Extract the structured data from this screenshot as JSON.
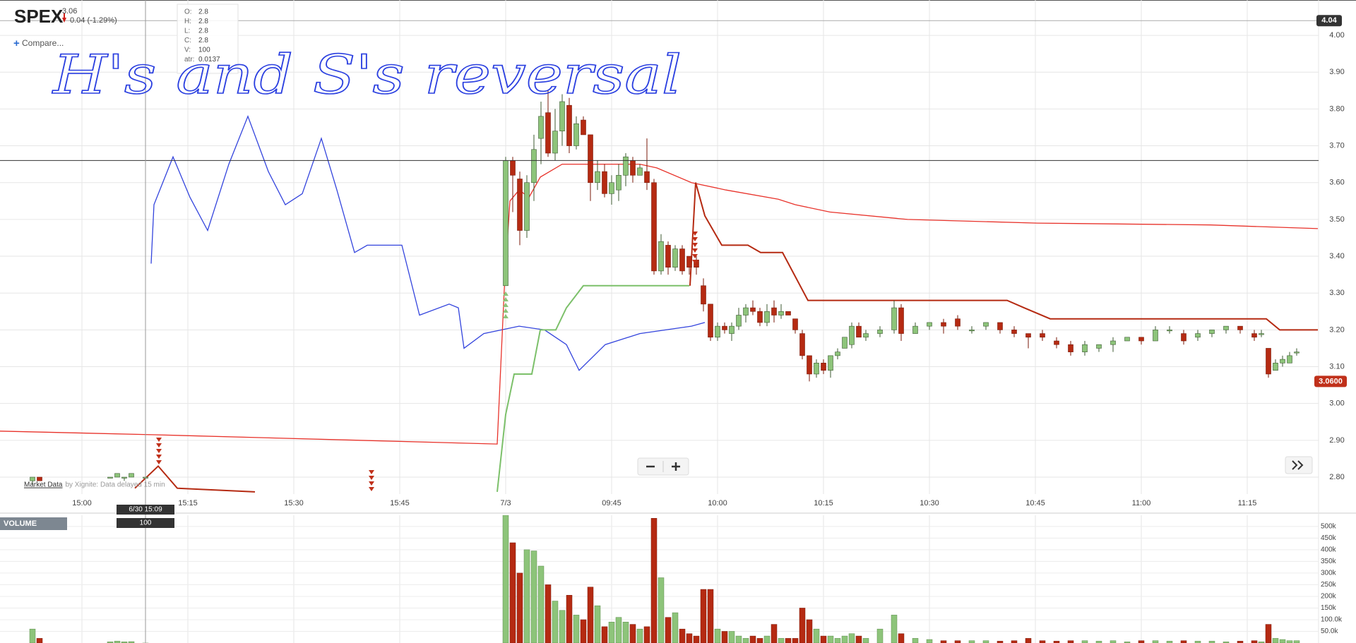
{
  "header": {
    "symbol": "SPEX",
    "price": 3.06,
    "change": "0.04 (-1.29%)",
    "compare": "Compare...",
    "tooltip": [
      {
        "label": "O:",
        "value": 2.8
      },
      {
        "label": "H:",
        "value": 2.8
      },
      {
        "label": "L:",
        "value": 2.8
      },
      {
        "label": "C:",
        "value": 2.8
      },
      {
        "label": "V:",
        "value": 100
      },
      {
        "label": "atr:",
        "value": 0.0137
      }
    ],
    "annotation": "H's and S's reversal"
  },
  "chart_data": {
    "type": "candlestick",
    "x": [
      -7,
      -6,
      4,
      5,
      6,
      7,
      9,
      60,
      61,
      62,
      63,
      64,
      65,
      66,
      67,
      68,
      69,
      70,
      71,
      72,
      73,
      74,
      75,
      76,
      77,
      78,
      79,
      80,
      81,
      82,
      83,
      84,
      85,
      86,
      87,
      88,
      89,
      90,
      91,
      92,
      93,
      94,
      95,
      96,
      97,
      98,
      99,
      100,
      101,
      102,
      103,
      104,
      105,
      106,
      107,
      108,
      109,
      110,
      111,
      113,
      115,
      116,
      118,
      120,
      122,
      124,
      126,
      128,
      130,
      132,
      134,
      136,
      138,
      140,
      142,
      144,
      146,
      148,
      150,
      152,
      154,
      156,
      158,
      160,
      162,
      164,
      166,
      167,
      168,
      169,
      170,
      171,
      172
    ],
    "open": [
      2.79,
      2.8,
      2.8,
      2.8,
      2.8,
      2.8,
      2.8,
      3.32,
      3.66,
      3.61,
      3.47,
      3.6,
      3.72,
      3.79,
      3.68,
      3.74,
      3.81,
      3.7,
      3.77,
      3.73,
      3.6,
      3.63,
      3.57,
      3.58,
      3.62,
      3.66,
      3.62,
      3.63,
      3.6,
      3.36,
      3.43,
      3.37,
      3.42,
      3.4,
      3.39,
      3.32,
      3.27,
      3.18,
      3.21,
      3.19,
      3.21,
      3.24,
      3.26,
      3.25,
      3.22,
      3.26,
      3.24,
      3.25,
      3.23,
      3.19,
      3.13,
      3.08,
      3.11,
      3.09,
      3.13,
      3.15,
      3.16,
      3.21,
      3.18,
      3.19,
      3.2,
      3.26,
      3.19,
      3.21,
      3.22,
      3.23,
      3.2,
      3.21,
      3.22,
      3.2,
      3.19,
      3.19,
      3.17,
      3.16,
      3.14,
      3.15,
      3.16,
      3.17,
      3.18,
      3.17,
      3.2,
      3.19,
      3.18,
      3.19,
      3.2,
      3.21,
      3.19,
      3.19,
      3.15,
      3.09,
      3.11,
      3.11,
      3.14
    ],
    "high": [
      2.8,
      2.8,
      2.8,
      2.81,
      2.8,
      2.81,
      2.8,
      3.67,
      3.67,
      3.63,
      3.62,
      3.73,
      3.82,
      3.85,
      3.8,
      3.84,
      3.83,
      3.78,
      3.78,
      3.73,
      3.66,
      3.65,
      3.62,
      3.65,
      3.68,
      3.67,
      3.65,
      3.72,
      3.61,
      3.46,
      3.44,
      3.43,
      3.43,
      3.4,
      3.4,
      3.34,
      3.27,
      3.22,
      3.22,
      3.22,
      3.26,
      3.27,
      3.28,
      3.26,
      3.27,
      3.28,
      3.27,
      3.25,
      3.23,
      3.2,
      3.13,
      3.12,
      3.12,
      3.13,
      3.15,
      3.18,
      3.22,
      3.22,
      3.2,
      3.21,
      3.28,
      3.27,
      3.22,
      3.22,
      3.23,
      3.24,
      3.21,
      3.22,
      3.22,
      3.21,
      3.19,
      3.2,
      3.18,
      3.17,
      3.17,
      3.16,
      3.18,
      3.18,
      3.18,
      3.21,
      3.21,
      3.2,
      3.2,
      3.2,
      3.21,
      3.21,
      3.2,
      3.2,
      3.15,
      3.12,
      3.13,
      3.14,
      3.15
    ],
    "low": [
      2.78,
      2.79,
      2.8,
      2.8,
      2.79,
      2.8,
      2.8,
      3.32,
      3.52,
      3.43,
      3.45,
      3.55,
      3.65,
      3.67,
      3.66,
      3.7,
      3.68,
      3.69,
      3.73,
      3.55,
      3.58,
      3.56,
      3.54,
      3.55,
      3.59,
      3.6,
      3.62,
      3.58,
      3.35,
      3.35,
      3.35,
      3.36,
      3.35,
      3.35,
      3.35,
      3.25,
      3.17,
      3.17,
      3.19,
      3.17,
      3.2,
      3.22,
      3.24,
      3.21,
      3.21,
      3.22,
      3.23,
      3.24,
      3.19,
      3.12,
      3.06,
      3.07,
      3.08,
      3.07,
      3.12,
      3.15,
      3.15,
      3.18,
      3.17,
      3.18,
      3.19,
      3.17,
      3.19,
      3.2,
      3.19,
      3.2,
      3.19,
      3.2,
      3.19,
      3.18,
      3.15,
      3.17,
      3.15,
      3.13,
      3.13,
      3.14,
      3.14,
      3.17,
      3.16,
      3.17,
      3.19,
      3.16,
      3.17,
      3.18,
      3.19,
      3.19,
      3.17,
      3.18,
      3.07,
      3.09,
      3.1,
      3.11,
      3.13
    ],
    "close": [
      2.8,
      2.79,
      2.8,
      2.81,
      2.8,
      2.81,
      2.8,
      3.66,
      3.62,
      3.47,
      3.6,
      3.69,
      3.78,
      3.68,
      3.74,
      3.82,
      3.7,
      3.76,
      3.73,
      3.6,
      3.63,
      3.57,
      3.6,
      3.62,
      3.67,
      3.62,
      3.64,
      3.6,
      3.36,
      3.44,
      3.37,
      3.42,
      3.36,
      3.37,
      3.37,
      3.27,
      3.18,
      3.21,
      3.2,
      3.21,
      3.24,
      3.26,
      3.25,
      3.22,
      3.25,
      3.24,
      3.25,
      3.24,
      3.2,
      3.13,
      3.08,
      3.11,
      3.09,
      3.13,
      3.14,
      3.18,
      3.21,
      3.18,
      3.19,
      3.2,
      3.26,
      3.19,
      3.21,
      3.22,
      3.21,
      3.21,
      3.2,
      3.22,
      3.2,
      3.19,
      3.18,
      3.18,
      3.16,
      3.14,
      3.16,
      3.16,
      3.17,
      3.18,
      3.17,
      3.2,
      3.2,
      3.17,
      3.19,
      3.2,
      3.21,
      3.2,
      3.18,
      3.19,
      3.08,
      3.11,
      3.12,
      3.13,
      3.14
    ],
    "up_color": "#8dc47a",
    "down_color": "#b52a12",
    "xlim": [
      -11.6,
      175.1
    ],
    "xticks": [
      {
        "value": 0,
        "label": "15:00"
      },
      {
        "value": 15,
        "label": "15:15"
      },
      {
        "value": 30,
        "label": "15:30"
      },
      {
        "value": 45,
        "label": "15:45"
      },
      {
        "value": 60,
        "label": "7/3"
      },
      {
        "value": 75,
        "label": "09:45"
      },
      {
        "value": 90,
        "label": "10:00"
      },
      {
        "value": 105,
        "label": "10:15"
      },
      {
        "value": 120,
        "label": "10:30"
      },
      {
        "value": 135,
        "label": "10:45"
      },
      {
        "value": 150,
        "label": "11:00"
      },
      {
        "value": 165,
        "label": "11:15"
      }
    ],
    "ylim": [
      2.754,
      4.096
    ],
    "yticks": [
      {
        "value": 2.8,
        "label": "2.80"
      },
      {
        "value": 2.9,
        "label": "2.90"
      },
      {
        "value": 3.0,
        "label": "3.00"
      },
      {
        "value": 3.1,
        "label": "3.10"
      },
      {
        "value": 3.2,
        "label": "3.20"
      },
      {
        "value": 3.3,
        "label": "3.30"
      },
      {
        "value": 3.4,
        "label": "3.40"
      },
      {
        "value": 3.5,
        "label": "3.50"
      },
      {
        "value": 3.6,
        "label": "3.60"
      },
      {
        "value": 3.7,
        "label": "3.70"
      },
      {
        "value": 3.8,
        "label": "3.80"
      },
      {
        "value": 3.9,
        "label": "3.90"
      },
      {
        "value": 4.0,
        "label": "4.00"
      }
    ],
    "grid": true,
    "lines": [
      {
        "color": "#3344dd",
        "x": [
          9.8,
          10.2,
          12.9,
          15.3,
          17.8,
          20.8,
          23.5,
          26.4,
          28.8,
          31.2,
          33.9,
          36.1,
          38.6,
          40.4,
          45.3,
          47.8,
          52.0,
          53.3,
          54.1,
          56.9,
          61.9,
          65.5,
          68.6,
          70.4,
          74.1,
          79.0,
          86.3,
          88.2
        ],
        "values": [
          3.38,
          3.54,
          3.67,
          3.56,
          3.47,
          3.65,
          3.78,
          3.63,
          3.54,
          3.57,
          3.72,
          3.58,
          3.41,
          3.43,
          3.43,
          3.24,
          3.27,
          3.26,
          3.15,
          3.19,
          3.21,
          3.2,
          3.16,
          3.09,
          3.16,
          3.19,
          3.21,
          3.22
        ]
      },
      {
        "color": "#e8322a",
        "x": [
          -11.6,
          10.4,
          58.8,
          59.8,
          60.6,
          61.9,
          63.3,
          64.9,
          68,
          72.9,
          79,
          81.4,
          86.3,
          91.2,
          98.6,
          101,
          105.9,
          116.9,
          135.3,
          159.8,
          175
        ],
        "values": [
          2.925,
          2.915,
          2.89,
          3.31,
          3.55,
          3.58,
          3.56,
          3.615,
          3.65,
          3.65,
          3.65,
          3.64,
          3.6,
          3.58,
          3.555,
          3.54,
          3.52,
          3.5,
          3.49,
          3.485,
          3.475
        ]
      },
      {
        "color": "#b52a12",
        "x": [
          7.5,
          10.8,
          13.5,
          24.5,
          40,
          86.1,
          86.9,
          88.2,
          90.6,
          94.3,
          96.1,
          99.2,
          102.8,
          131,
          133.4,
          137.1,
          167.7,
          169.6,
          175
        ],
        "values": [
          2.77,
          2.83,
          2.77,
          2.76,
          null,
          3.32,
          3.6,
          3.51,
          3.43,
          3.43,
          3.41,
          3.41,
          3.28,
          3.28,
          3.26,
          3.23,
          3.23,
          3.2,
          3.2
        ]
      },
      {
        "color": "#7cc06a",
        "x": [
          58.8,
          60,
          61.2,
          63.7,
          64.9,
          67.1,
          68.6,
          71,
          86
        ],
        "values": [
          2.76,
          2.97,
          3.08,
          3.08,
          3.2,
          3.2,
          3.26,
          3.32,
          3.32
        ]
      }
    ],
    "reference_line": 3.66,
    "top_marker": 4.04,
    "last_price": {
      "value": 3.06,
      "label": "3.0600"
    },
    "crosshair": {
      "x": 9,
      "date_label": "6/30 15:09",
      "volume_label": 100
    },
    "credit": {
      "link": "Market Data",
      "text": "by Xignite: Data delayed 15 min"
    },
    "volume": {
      "title": "VOLUME",
      "values": [
        60000,
        20000,
        5000,
        8000,
        5000,
        6000,
        100,
        548000,
        430000,
        300000,
        400000,
        395000,
        330000,
        250000,
        180000,
        140000,
        205000,
        120000,
        100000,
        240000,
        160000,
        70000,
        90000,
        110000,
        90000,
        80000,
        60000,
        70000,
        535000,
        280000,
        110000,
        130000,
        60000,
        40000,
        30000,
        230000,
        230000,
        60000,
        50000,
        50000,
        30000,
        20000,
        30000,
        20000,
        30000,
        80000,
        20000,
        20000,
        20000,
        150000,
        100000,
        60000,
        30000,
        30000,
        20000,
        30000,
        40000,
        30000,
        20000,
        60000,
        120000,
        40000,
        20000,
        15000,
        10000,
        10000,
        10000,
        10000,
        8000,
        10000,
        20000,
        10000,
        8000,
        10000,
        10000,
        8000,
        10000,
        5000,
        10000,
        10000,
        8000,
        10000,
        8000,
        8000,
        5000,
        8000,
        10000,
        5000,
        80000,
        20000,
        15000,
        10000,
        10000
      ],
      "ylim": [
        0,
        548000
      ],
      "yticks": [
        {
          "value": 50000,
          "label": "50.0k"
        },
        {
          "value": 100000,
          "label": "100.0k"
        },
        {
          "value": 150000,
          "label": "150k"
        },
        {
          "value": 200000,
          "label": "200k"
        },
        {
          "value": 250000,
          "label": "250k"
        },
        {
          "value": 300000,
          "label": "300k"
        },
        {
          "value": 350000,
          "label": "350k"
        },
        {
          "value": 400000,
          "label": "400k"
        },
        {
          "value": 450000,
          "label": "450k"
        },
        {
          "value": 500000,
          "label": "500k"
        }
      ]
    }
  }
}
